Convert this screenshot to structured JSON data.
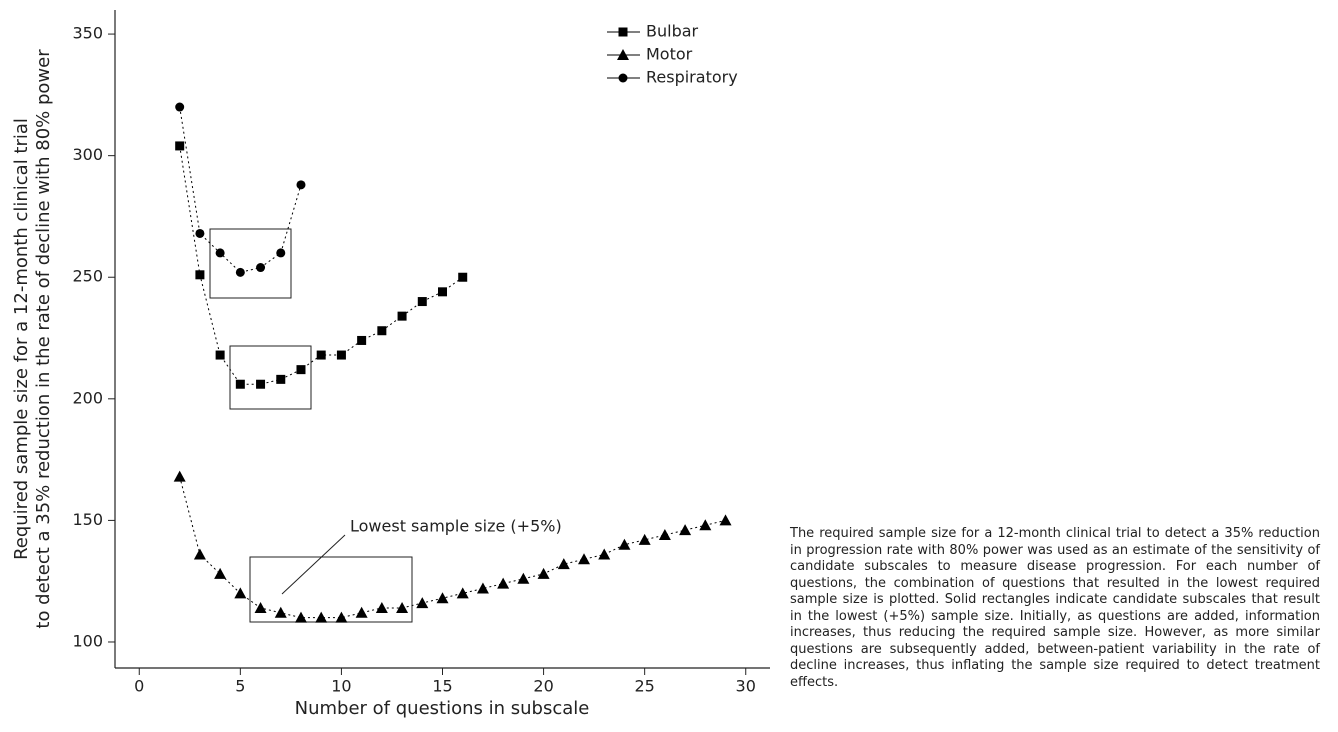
{
  "chart_data": {
    "type": "line",
    "xlabel": "Number of questions in subscale",
    "ylabel": [
      "Required sample size for a 12-month clinical trial",
      "to detect a 35% reduction in the rate of decline with 80% power"
    ],
    "xlim": [
      -1.2,
      31.2
    ],
    "xticks": [
      0,
      5,
      10,
      15,
      20,
      25,
      30
    ],
    "ylim": [
      89.3,
      359.9
    ],
    "yticks": [
      100,
      150,
      200,
      250,
      300,
      350
    ],
    "annotation": "Lowest sample size (+5%)",
    "series": [
      {
        "name": "Bulbar",
        "color": "#000000",
        "marker": "square",
        "x": [
          2,
          3,
          4,
          5,
          6,
          7,
          8,
          9,
          10,
          11,
          12,
          13,
          14,
          15,
          16
        ],
        "values": [
          304,
          251,
          218,
          206,
          206,
          208,
          212,
          218,
          218,
          224,
          228,
          234,
          240,
          244,
          250
        ]
      },
      {
        "name": "Motor",
        "color": "#000000",
        "marker": "triangle",
        "x": [
          2,
          3,
          4,
          5,
          6,
          7,
          8,
          9,
          10,
          11,
          12,
          13,
          14,
          15,
          16,
          17,
          18,
          19,
          20,
          21,
          22,
          23,
          24,
          25,
          26,
          27,
          28,
          29
        ],
        "values": [
          168,
          136,
          128,
          120,
          114,
          112,
          110,
          110,
          110,
          112,
          114,
          114,
          116,
          118,
          120,
          122,
          124,
          126,
          128,
          132,
          134,
          136,
          140,
          142,
          144,
          146,
          148,
          150
        ]
      },
      {
        "name": "Respiratory",
        "color": "#000000",
        "marker": "circle",
        "x": [
          2,
          3,
          4,
          5,
          6,
          7,
          8
        ],
        "values": [
          320,
          268,
          260,
          252,
          254,
          260,
          288
        ]
      }
    ]
  },
  "caption": "The required sample size for a 12-month clinical trial to detect a 35% reduction in progression rate with 80% power was used as an estimate of the sensitivity of candidate subscales to measure disease progression. For each number of questions, the combination of questions that resulted in the lowest required sample size is plotted. Solid rectangles indicate candidate subscales that result in the lowest (+5%) sample size. Initially, as questions are added, information increases, thus reducing the required sample size. However, as more similar questions are subsequently added, between-patient variability in the rate of decline increases, thus inflating the sample size required to detect treatment effects."
}
